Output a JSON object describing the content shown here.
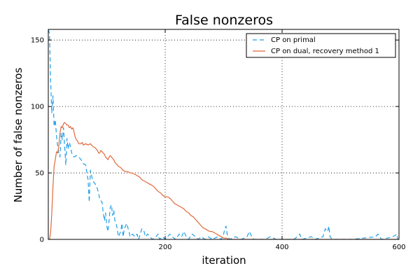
{
  "chart_data": {
    "type": "line",
    "title": "False nonzeros",
    "xlabel": "iteration",
    "ylabel": "Number of false nonzeros",
    "xlim": [
      0,
      600
    ],
    "ylim": [
      0,
      158
    ],
    "xticks": [
      200,
      400,
      600
    ],
    "yticks": [
      0,
      50,
      100,
      150
    ],
    "grid": true,
    "legend_position": "top-right",
    "series": [
      {
        "name": "CP on primal",
        "color": "#1f9fe8",
        "dash": "dashed",
        "points": [
          [
            0,
            158
          ],
          [
            2,
            155
          ],
          [
            4,
            120
          ],
          [
            6,
            95
          ],
          [
            8,
            108
          ],
          [
            10,
            85
          ],
          [
            12,
            90
          ],
          [
            14,
            78
          ],
          [
            16,
            70
          ],
          [
            18,
            65
          ],
          [
            20,
            62
          ],
          [
            22,
            80
          ],
          [
            24,
            75
          ],
          [
            26,
            84
          ],
          [
            28,
            70
          ],
          [
            30,
            56
          ],
          [
            32,
            76
          ],
          [
            34,
            68
          ],
          [
            36,
            73
          ],
          [
            38,
            70
          ],
          [
            40,
            65
          ],
          [
            44,
            62
          ],
          [
            48,
            63
          ],
          [
            52,
            62
          ],
          [
            56,
            60
          ],
          [
            60,
            57
          ],
          [
            64,
            56
          ],
          [
            66,
            50
          ],
          [
            68,
            45
          ],
          [
            70,
            28
          ],
          [
            72,
            52
          ],
          [
            76,
            44
          ],
          [
            80,
            42
          ],
          [
            84,
            38
          ],
          [
            86,
            35
          ],
          [
            88,
            30
          ],
          [
            92,
            28
          ],
          [
            94,
            20
          ],
          [
            96,
            14
          ],
          [
            98,
            20
          ],
          [
            100,
            10
          ],
          [
            102,
            6
          ],
          [
            104,
            14
          ],
          [
            106,
            24
          ],
          [
            108,
            26
          ],
          [
            110,
            18
          ],
          [
            112,
            22
          ],
          [
            114,
            14
          ],
          [
            116,
            12
          ],
          [
            118,
            8
          ],
          [
            120,
            2
          ],
          [
            124,
            6
          ],
          [
            126,
            12
          ],
          [
            128,
            2
          ],
          [
            130,
            8
          ],
          [
            134,
            12
          ],
          [
            138,
            6
          ],
          [
            140,
            2
          ],
          [
            144,
            4
          ],
          [
            148,
            2
          ],
          [
            152,
            4
          ],
          [
            154,
            0
          ],
          [
            156,
            2
          ],
          [
            160,
            8
          ],
          [
            164,
            6
          ],
          [
            166,
            2
          ],
          [
            170,
            4
          ],
          [
            174,
            2
          ],
          [
            178,
            0
          ],
          [
            184,
            2
          ],
          [
            188,
            4
          ],
          [
            190,
            0
          ],
          [
            196,
            2
          ],
          [
            200,
            0
          ],
          [
            204,
            2
          ],
          [
            208,
            4
          ],
          [
            212,
            2
          ],
          [
            218,
            0
          ],
          [
            224,
            4
          ],
          [
            228,
            2
          ],
          [
            232,
            6
          ],
          [
            236,
            2
          ],
          [
            240,
            0
          ],
          [
            246,
            4
          ],
          [
            252,
            2
          ],
          [
            256,
            0
          ],
          [
            262,
            2
          ],
          [
            268,
            0
          ],
          [
            274,
            2
          ],
          [
            280,
            0
          ],
          [
            290,
            2
          ],
          [
            296,
            0
          ],
          [
            300,
            4
          ],
          [
            302,
            8
          ],
          [
            304,
            10
          ],
          [
            306,
            4
          ],
          [
            310,
            0
          ],
          [
            320,
            2
          ],
          [
            330,
            0
          ],
          [
            340,
            2
          ],
          [
            344,
            6
          ],
          [
            348,
            2
          ],
          [
            352,
            0
          ],
          [
            370,
            0
          ],
          [
            380,
            2
          ],
          [
            390,
            0
          ],
          [
            420,
            0
          ],
          [
            426,
            2
          ],
          [
            430,
            4
          ],
          [
            434,
            0
          ],
          [
            450,
            2
          ],
          [
            456,
            0
          ],
          [
            470,
            2
          ],
          [
            474,
            8
          ],
          [
            478,
            6
          ],
          [
            480,
            10
          ],
          [
            482,
            2
          ],
          [
            486,
            0
          ],
          [
            520,
            0
          ],
          [
            560,
            2
          ],
          [
            564,
            4
          ],
          [
            570,
            0
          ],
          [
            590,
            2
          ],
          [
            596,
            4
          ],
          [
            598,
            0
          ],
          [
            600,
            0
          ]
        ]
      },
      {
        "name": "CP on dual, recovery method 1",
        "color": "#e06a3c",
        "dash": "solid",
        "points": [
          [
            0,
            0
          ],
          [
            2,
            0
          ],
          [
            4,
            5
          ],
          [
            6,
            20
          ],
          [
            8,
            40
          ],
          [
            10,
            55
          ],
          [
            12,
            60
          ],
          [
            14,
            66
          ],
          [
            16,
            65
          ],
          [
            18,
            70
          ],
          [
            20,
            80
          ],
          [
            22,
            85
          ],
          [
            24,
            84
          ],
          [
            26,
            87
          ],
          [
            28,
            88
          ],
          [
            30,
            87
          ],
          [
            32,
            86
          ],
          [
            34,
            86
          ],
          [
            36,
            84
          ],
          [
            38,
            85
          ],
          [
            40,
            83
          ],
          [
            42,
            84
          ],
          [
            44,
            81
          ],
          [
            46,
            77
          ],
          [
            48,
            75
          ],
          [
            50,
            74
          ],
          [
            52,
            72
          ],
          [
            56,
            72
          ],
          [
            58,
            73
          ],
          [
            60,
            71
          ],
          [
            64,
            72
          ],
          [
            68,
            71
          ],
          [
            72,
            72
          ],
          [
            76,
            70
          ],
          [
            80,
            69
          ],
          [
            84,
            67
          ],
          [
            86,
            65
          ],
          [
            88,
            65
          ],
          [
            90,
            67
          ],
          [
            92,
            66
          ],
          [
            96,
            64
          ],
          [
            98,
            62
          ],
          [
            100,
            61
          ],
          [
            102,
            60
          ],
          [
            104,
            62
          ],
          [
            106,
            63
          ],
          [
            108,
            62
          ],
          [
            110,
            61
          ],
          [
            112,
            60
          ],
          [
            114,
            58
          ],
          [
            116,
            57
          ],
          [
            118,
            56
          ],
          [
            120,
            55
          ],
          [
            124,
            54
          ],
          [
            128,
            52
          ],
          [
            132,
            51
          ],
          [
            136,
            51
          ],
          [
            140,
            50
          ],
          [
            144,
            50
          ],
          [
            148,
            49
          ],
          [
            152,
            48
          ],
          [
            156,
            47
          ],
          [
            160,
            45
          ],
          [
            164,
            44
          ],
          [
            168,
            43
          ],
          [
            172,
            42
          ],
          [
            176,
            41
          ],
          [
            180,
            40
          ],
          [
            184,
            38
          ],
          [
            188,
            36
          ],
          [
            192,
            35
          ],
          [
            196,
            33
          ],
          [
            200,
            32
          ],
          [
            204,
            32
          ],
          [
            208,
            31
          ],
          [
            212,
            29
          ],
          [
            216,
            27
          ],
          [
            220,
            26
          ],
          [
            224,
            25
          ],
          [
            228,
            24
          ],
          [
            232,
            23
          ],
          [
            236,
            21
          ],
          [
            240,
            20
          ],
          [
            244,
            18
          ],
          [
            248,
            17
          ],
          [
            252,
            15
          ],
          [
            256,
            13
          ],
          [
            260,
            11
          ],
          [
            264,
            9
          ],
          [
            268,
            8
          ],
          [
            272,
            7
          ],
          [
            276,
            6
          ],
          [
            280,
            6
          ],
          [
            284,
            5
          ],
          [
            288,
            4
          ],
          [
            292,
            3
          ],
          [
            296,
            2
          ],
          [
            300,
            1
          ],
          [
            304,
            1
          ],
          [
            310,
            0
          ],
          [
            320,
            0
          ],
          [
            600,
            0
          ]
        ]
      }
    ]
  }
}
